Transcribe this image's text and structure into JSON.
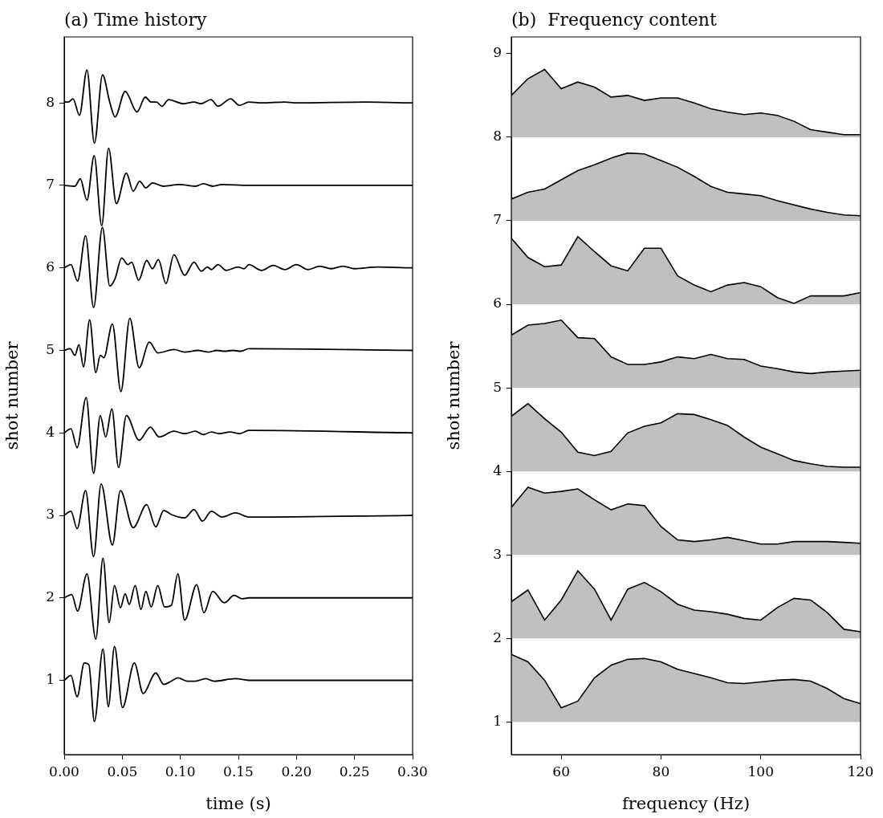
{
  "chart_data": [
    {
      "type": "line",
      "title": "(a) Time history",
      "xlabel": "time (s)",
      "ylabel": "shot number",
      "xlim": [
        0,
        0.3
      ],
      "ylim": [
        0.1,
        8.8
      ],
      "xticks": [
        {
          "value": 0,
          "label": "0.00"
        },
        {
          "value": 0.05,
          "label": "0.05"
        },
        {
          "value": 0.1,
          "label": "0.10"
        },
        {
          "value": 0.15,
          "label": "0.15"
        },
        {
          "value": 0.2,
          "label": "0.20"
        },
        {
          "value": 0.25,
          "label": "0.25"
        },
        {
          "value": 0.3,
          "label": "0.30"
        }
      ],
      "yticks": [
        1,
        2,
        3,
        4,
        5,
        6,
        7,
        8
      ],
      "grid": false,
      "legend": false,
      "series": [
        {
          "color": "#000000",
          "x": [
            0,
            0.0058,
            0.0111,
            0.0173,
            0.0212,
            0.026,
            0.0334,
            0.038,
            0.0433,
            0.0502,
            0.0604,
            0.068,
            0.0788,
            0.0857,
            0.0922,
            0.0979,
            0.106,
            0.1129,
            0.1217,
            0.129,
            0.1475,
            0.159,
            0.3
          ],
          "values": [
            1,
            1.06,
            0.8,
            1.21,
            1.19,
            0.5,
            1.38,
            0.68,
            1.41,
            0.67,
            1.21,
            0.84,
            1.09,
            0.95,
            0.99,
            1.03,
            0.99,
            0.99,
            1.02,
            0.99,
            1.02,
            1,
            1
          ]
        },
        {
          "color": "#000000",
          "x": [
            0,
            0.0065,
            0.0115,
            0.0196,
            0.0272,
            0.0334,
            0.0387,
            0.0433,
            0.0484,
            0.0525,
            0.056,
            0.0611,
            0.0661,
            0.0703,
            0.0749,
            0.0806,
            0.0864,
            0.0922,
            0.0979,
            0.1037,
            0.1141,
            0.1203,
            0.1279,
            0.1378,
            0.1463,
            0.1532,
            0.159,
            0.3
          ],
          "values": [
            2,
            2.04,
            1.84,
            2.29,
            1.5,
            2.48,
            1.7,
            2.15,
            1.88,
            2.05,
            1.92,
            2.15,
            1.86,
            2.08,
            1.89,
            2.15,
            1.89,
            1.91,
            2.29,
            1.73,
            2.16,
            1.82,
            2.08,
            1.94,
            2.03,
            1.99,
            2,
            2
          ]
        },
        {
          "color": "#000000",
          "x": [
            0,
            0.0058,
            0.0111,
            0.0184,
            0.0253,
            0.0318,
            0.0415,
            0.0484,
            0.0594,
            0.071,
            0.0788,
            0.0857,
            0.0922,
            0.1037,
            0.1118,
            0.1191,
            0.1267,
            0.1359,
            0.1475,
            0.159,
            0.3
          ],
          "values": [
            3,
            3.05,
            2.84,
            3.3,
            2.5,
            3.38,
            2.64,
            3.3,
            2.85,
            3.13,
            2.86,
            3.06,
            3.01,
            2.97,
            3.07,
            2.93,
            3.05,
            2.98,
            3.03,
            2.98,
            3
          ]
        },
        {
          "color": "#000000",
          "x": [
            0,
            0.0058,
            0.0111,
            0.0189,
            0.0253,
            0.0311,
            0.0357,
            0.041,
            0.0468,
            0.0535,
            0.0645,
            0.0742,
            0.0818,
            0.0945,
            0.1037,
            0.1129,
            0.1198,
            0.1267,
            0.1336,
            0.1429,
            0.1509,
            0.159,
            0.3
          ],
          "values": [
            4,
            4.05,
            3.82,
            4.43,
            3.51,
            4.21,
            3.95,
            4.29,
            3.58,
            4.21,
            3.91,
            4.07,
            3.95,
            4.02,
            3.99,
            4.02,
            3.98,
            4.01,
            3.99,
            4.01,
            3.99,
            4.03,
            4
          ]
        },
        {
          "color": "#000000",
          "x": [
            0,
            0.0051,
            0.0092,
            0.0127,
            0.0166,
            0.0219,
            0.0272,
            0.0311,
            0.0341,
            0.0415,
            0.0488,
            0.0565,
            0.0645,
            0.0733,
            0.0806,
            0.0945,
            0.1037,
            0.1152,
            0.1244,
            0.1313,
            0.1382,
            0.1452,
            0.1521,
            0.159,
            0.3
          ],
          "values": [
            5,
            5.02,
            4.94,
            5.07,
            4.8,
            5.37,
            4.73,
            4.94,
            4.91,
            5.32,
            4.5,
            5.39,
            4.79,
            5.1,
            4.97,
            5.01,
            4.98,
            5,
            4.98,
            5,
            4.99,
            5,
            4.99,
            5.02,
            5
          ]
        },
        {
          "color": "#000000",
          "x": [
            0,
            0.0058,
            0.0115,
            0.0184,
            0.0253,
            0.0329,
            0.0392,
            0.0438,
            0.0495,
            0.0548,
            0.0581,
            0.0641,
            0.071,
            0.076,
            0.0811,
            0.0876,
            0.0945,
            0.1037,
            0.1118,
            0.118,
            0.1233,
            0.1267,
            0.1325,
            0.1394,
            0.1498,
            0.1548,
            0.159,
            0.17,
            0.18,
            0.19,
            0.2,
            0.21,
            0.22,
            0.23,
            0.24,
            0.25,
            0.27,
            0.3
          ],
          "values": [
            6,
            6.04,
            5.84,
            6.39,
            5.52,
            6.49,
            5.78,
            5.87,
            6.12,
            6.04,
            6.07,
            5.85,
            6.09,
            5.99,
            6.1,
            5.81,
            6.16,
            5.91,
            6.07,
            5.96,
            6.01,
            5.98,
            6.04,
            5.97,
            6.01,
            5.99,
            6.04,
            5.97,
            6.03,
            5.98,
            6.04,
            5.98,
            6.02,
            5.99,
            6.02,
            5.99,
            6.01,
            6
          ]
        },
        {
          "color": "#000000",
          "x": [
            0,
            0.0092,
            0.0138,
            0.0196,
            0.0258,
            0.0323,
            0.0382,
            0.0449,
            0.0535,
            0.0594,
            0.065,
            0.0703,
            0.076,
            0.0853,
            0.0991,
            0.1129,
            0.1198,
            0.1279,
            0.1359,
            0.159,
            0.3
          ],
          "values": [
            7,
            6.99,
            7.08,
            6.82,
            7.36,
            6.51,
            7.45,
            6.78,
            7.15,
            6.93,
            7.05,
            6.97,
            7.03,
            6.99,
            7.01,
            6.99,
            7.02,
            6.99,
            7.01,
            7,
            7
          ]
        },
        {
          "color": "#000000",
          "x": [
            0,
            0.0035,
            0.0076,
            0.0131,
            0.0196,
            0.026,
            0.033,
            0.0392,
            0.0438,
            0.0525,
            0.0627,
            0.0698,
            0.0749,
            0.0795,
            0.0841,
            0.0899,
            0.1025,
            0.1118,
            0.1175,
            0.1263,
            0.1325,
            0.1433,
            0.1509,
            0.159,
            0.17,
            0.19,
            0.2,
            0.26,
            0.3
          ],
          "values": [
            8.01,
            8.01,
            8.05,
            7.85,
            8.4,
            7.51,
            8.34,
            8.01,
            7.83,
            8.14,
            7.89,
            8.07,
            8.01,
            8.01,
            7.96,
            8.04,
            7.99,
            8.01,
            7.99,
            8.04,
            7.96,
            8.05,
            7.97,
            8.01,
            8,
            8.01,
            8,
            8.01,
            8
          ]
        }
      ]
    },
    {
      "type": "area",
      "title": "(b)  Frequency content",
      "xlabel": "frequency (Hz)",
      "ylabel": "shot number",
      "xlim": [
        50,
        120
      ],
      "ylim": [
        0.61,
        9.2
      ],
      "xticks": [
        60,
        80,
        100,
        120
      ],
      "yticks": [
        1,
        2,
        3,
        4,
        5,
        6,
        7,
        8,
        9
      ],
      "grid": false,
      "legend": false,
      "x": [
        50,
        53.33,
        56.67,
        60,
        63.33,
        66.67,
        70,
        73.33,
        76.67,
        80,
        83.33,
        86.67,
        90,
        93.33,
        96.67,
        100,
        103.33,
        106.67,
        110,
        113.33,
        116.67,
        120
      ],
      "series": [
        {
          "color": "#c0c0c0",
          "values": [
            1.81,
            1.72,
            1.5,
            1.17,
            1.25,
            1.53,
            1.68,
            1.75,
            1.76,
            1.72,
            1.63,
            1.58,
            1.53,
            1.47,
            1.46,
            1.48,
            1.5,
            1.51,
            1.49,
            1.4,
            1.28,
            1.22
          ]
        },
        {
          "color": "#c0c0c0",
          "values": [
            2.44,
            2.58,
            2.22,
            2.46,
            2.81,
            2.59,
            2.22,
            2.59,
            2.67,
            2.56,
            2.41,
            2.34,
            2.32,
            2.29,
            2.24,
            2.22,
            2.37,
            2.48,
            2.46,
            2.31,
            2.11,
            2.08
          ]
        },
        {
          "color": "#c0c0c0",
          "values": [
            3.57,
            3.81,
            3.74,
            3.76,
            3.79,
            3.66,
            3.54,
            3.61,
            3.59,
            3.34,
            3.18,
            3.16,
            3.18,
            3.21,
            3.17,
            3.13,
            3.13,
            3.16,
            3.16,
            3.16,
            3.15,
            3.14
          ]
        },
        {
          "color": "#c0c0c0",
          "values": [
            4.66,
            4.81,
            4.63,
            4.47,
            4.23,
            4.19,
            4.24,
            4.46,
            4.54,
            4.58,
            4.69,
            4.68,
            4.62,
            4.55,
            4.41,
            4.29,
            4.21,
            4.13,
            4.09,
            4.06,
            4.05,
            4.05
          ]
        },
        {
          "color": "#c0c0c0",
          "values": [
            5.63,
            5.75,
            5.77,
            5.81,
            5.6,
            5.59,
            5.37,
            5.28,
            5.28,
            5.31,
            5.37,
            5.35,
            5.4,
            5.35,
            5.34,
            5.26,
            5.23,
            5.19,
            5.17,
            5.19,
            5.2,
            5.21
          ]
        },
        {
          "color": "#c0c0c0",
          "values": [
            6.79,
            6.56,
            6.45,
            6.47,
            6.81,
            6.63,
            6.46,
            6.4,
            6.67,
            6.67,
            6.34,
            6.23,
            6.15,
            6.23,
            6.26,
            6.21,
            6.08,
            6.01,
            6.1,
            6.1,
            6.1,
            6.14
          ]
        },
        {
          "color": "#c0c0c0",
          "values": [
            7.26,
            7.34,
            7.38,
            7.49,
            7.6,
            7.67,
            7.75,
            7.81,
            7.8,
            7.72,
            7.64,
            7.53,
            7.41,
            7.34,
            7.32,
            7.3,
            7.24,
            7.19,
            7.14,
            7.1,
            7.07,
            7.06
          ]
        },
        {
          "color": "#c0c0c0",
          "values": [
            8.5,
            8.7,
            8.81,
            8.58,
            8.66,
            8.6,
            8.48,
            8.5,
            8.44,
            8.47,
            8.47,
            8.41,
            8.34,
            8.3,
            8.27,
            8.29,
            8.26,
            8.19,
            8.09,
            8.06,
            8.03,
            8.03
          ]
        }
      ]
    }
  ]
}
